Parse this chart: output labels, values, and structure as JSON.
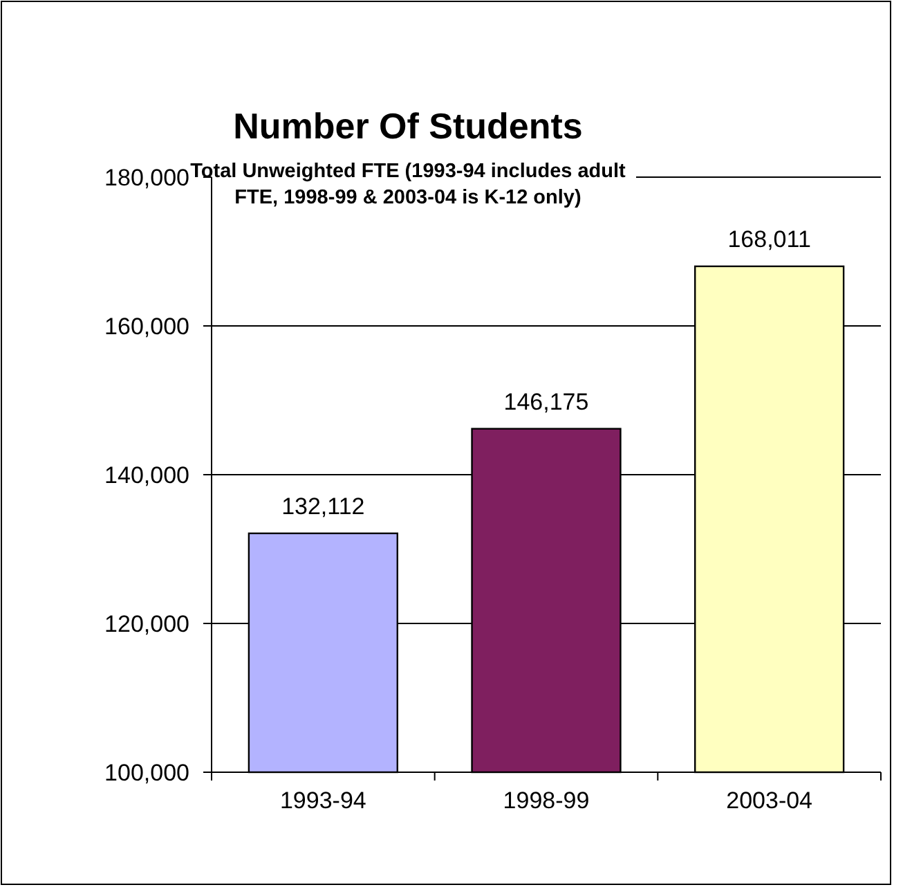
{
  "chart_data": {
    "type": "bar",
    "title": "Number Of Students",
    "subtitle": "Total Unweighted FTE (1993-94 includes adult FTE, 1998-99 & 2003-04 is K-12 only)",
    "categories": [
      "1993-94",
      "1998-99",
      "2003-04"
    ],
    "values": [
      132112,
      146175,
      168011
    ],
    "colors": [
      "#b3b3ff",
      "#7f1f5f",
      "#ffffc0"
    ],
    "ylim": [
      100000,
      180000
    ],
    "yticks": [
      {
        "value": 100000,
        "label": "100,000"
      },
      {
        "value": 120000,
        "label": "120,000"
      },
      {
        "value": 140000,
        "label": "140,000"
      },
      {
        "value": 160000,
        "label": "160,000"
      },
      {
        "value": 180000,
        "label": "180,000"
      }
    ],
    "value_labels": [
      "132,112",
      "146,175",
      "168,011"
    ],
    "grid": "y"
  }
}
